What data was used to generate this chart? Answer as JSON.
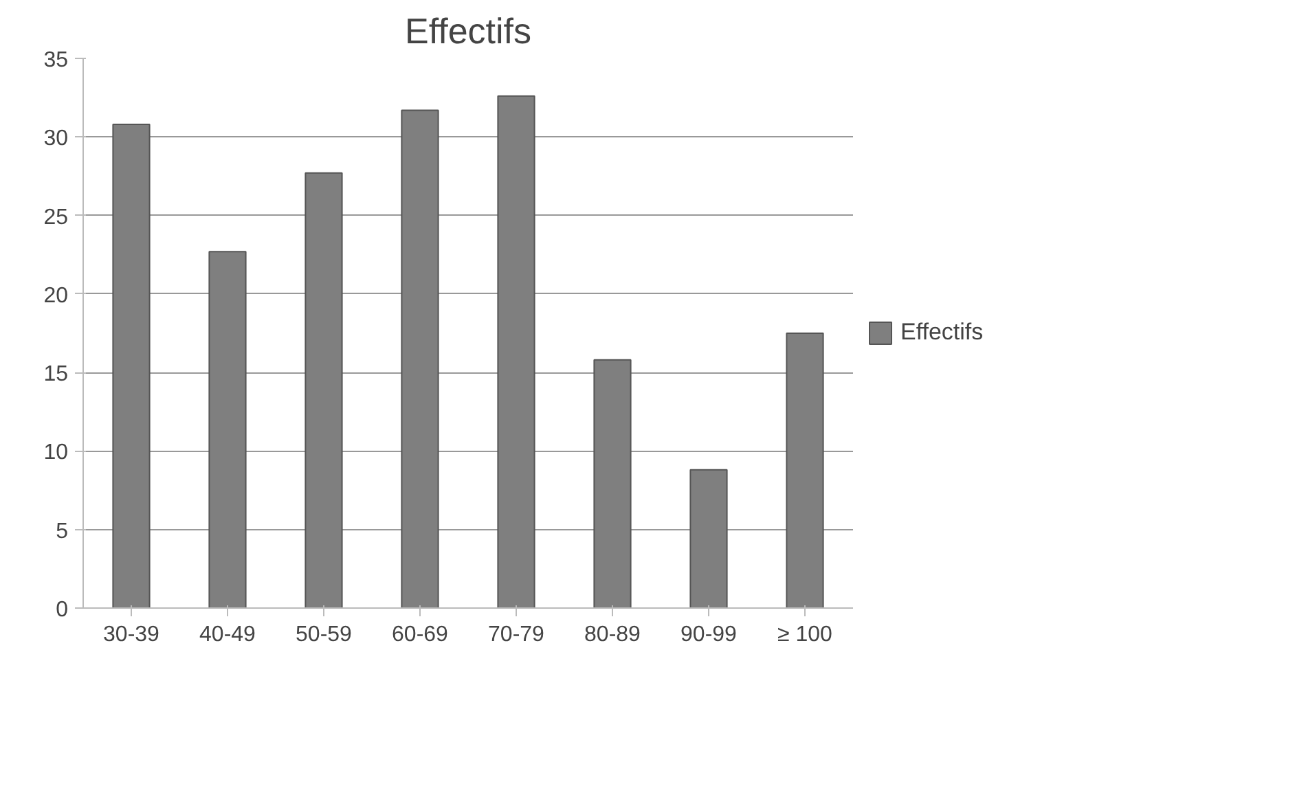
{
  "chart_data": {
    "type": "bar",
    "title": "Effectifs",
    "categories": [
      "30-39",
      "40-49",
      "50-59",
      "60-69",
      "70-79",
      "80-89",
      "90-99",
      "≥ 100"
    ],
    "series": [
      {
        "name": "Effectifs",
        "color": "#7f7f7f",
        "values": [
          30.8,
          22.7,
          27.7,
          31.7,
          32.6,
          15.8,
          8.8,
          17.5
        ]
      }
    ],
    "ylim": [
      0,
      35
    ],
    "yticks": [
      0,
      5,
      10,
      15,
      20,
      25,
      30,
      35
    ],
    "grid": "y",
    "legend": "right"
  }
}
